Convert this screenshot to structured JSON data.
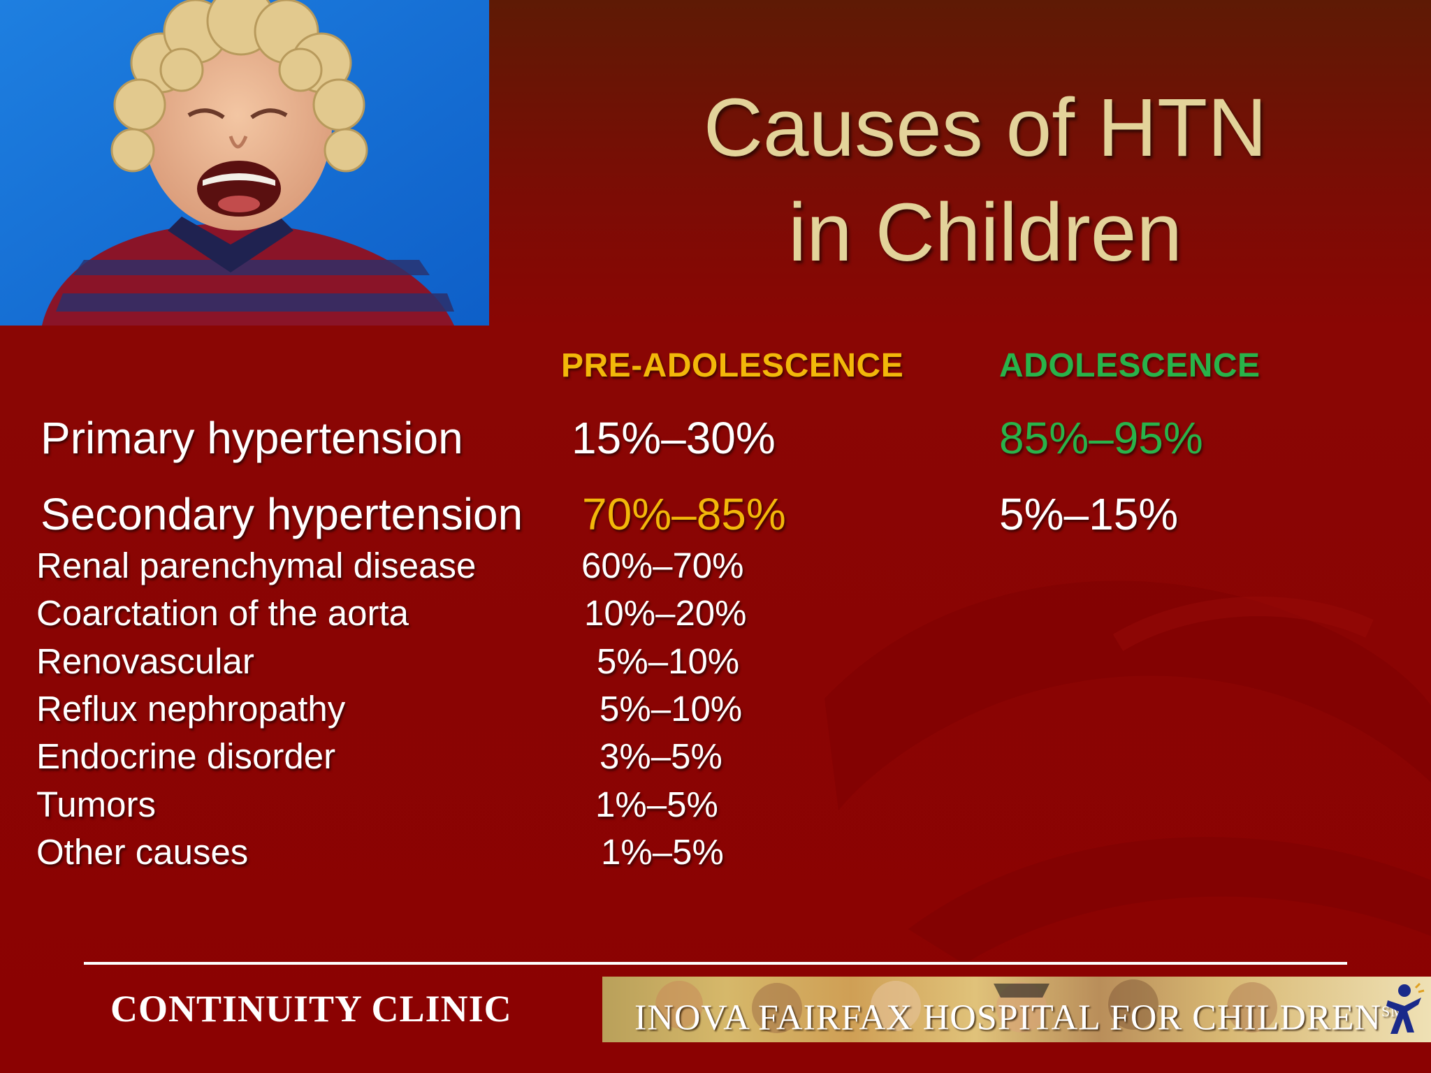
{
  "slide": {
    "title_line1": "Causes of HTN",
    "title_line2": "in Children"
  },
  "columns": {
    "pre": "PRE-ADOLESCENCE",
    "ado": "ADOLESCENCE"
  },
  "primary": {
    "label": "Primary hypertension",
    "pre": "15%–30%",
    "ado": "85%–95%"
  },
  "secondary": {
    "label": "Secondary hypertension",
    "pre": "70%–85%",
    "ado": "5%–15%"
  },
  "causes": [
    {
      "label": "Renal parenchymal disease",
      "value": "60%–70%"
    },
    {
      "label": "Coarctation of the aorta",
      "value": "10%–20%"
    },
    {
      "label": "Renovascular",
      "value": "5%–10%"
    },
    {
      "label": "Reflux nephropathy",
      "value": "5%–10%"
    },
    {
      "label": "Endocrine disorder",
      "value": "3%–5%"
    },
    {
      "label": "Tumors",
      "value": "1%–5%"
    },
    {
      "label": "Other causes",
      "value": "1%–5%"
    }
  ],
  "footer": {
    "left": "CONTINUITY CLINIC",
    "banner": "INOVA FAIRFAX HOSPITAL FOR CHILDREN",
    "banner_mark": "SM"
  },
  "colors": {
    "title": "#e3d39a",
    "pre_accent": "#f2b80a",
    "ado_accent": "#29b34a",
    "background": "#8b0202"
  },
  "icons": {
    "photo": "crying-child-photo",
    "logo": "inova-figure-logo"
  }
}
